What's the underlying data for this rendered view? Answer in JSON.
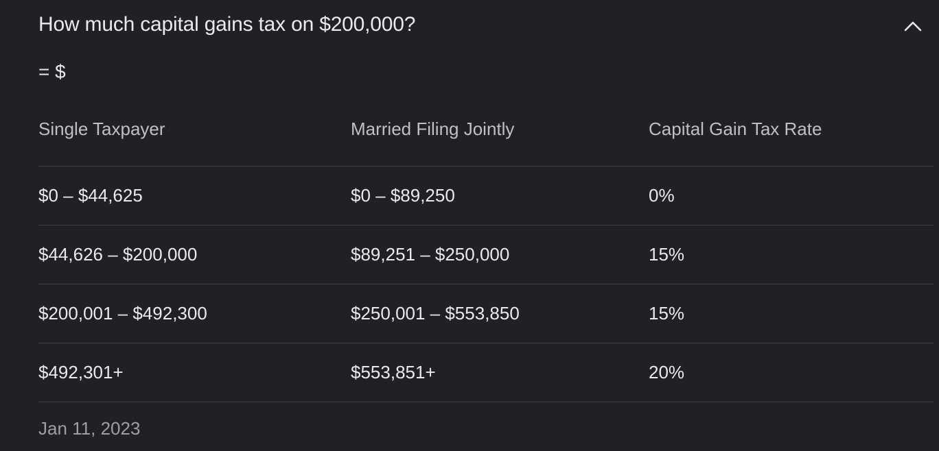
{
  "question": "How much capital gains tax on $200,000?",
  "answer": "= $",
  "table": {
    "headers": [
      "Single Taxpayer",
      "Married Filing Jointly",
      "Capital Gain Tax Rate"
    ],
    "rows": [
      [
        "$0 – $44,625",
        "$0 – $89,250",
        "0%"
      ],
      [
        "$44,626 – $200,000",
        "$89,251 – $250,000",
        "15%"
      ],
      [
        "$200,001 – $492,300",
        "$250,001 – $553,850",
        "15%"
      ],
      [
        "$492,301+",
        "$553,851+",
        "20%"
      ]
    ]
  },
  "date": "Jan 11, 2023",
  "icons": {
    "collapse": "chevron-up-icon"
  },
  "colors": {
    "background": "#202124",
    "text": "#e8eaed",
    "muted_text": "#9aa0a6",
    "divider": "#3c4043"
  }
}
